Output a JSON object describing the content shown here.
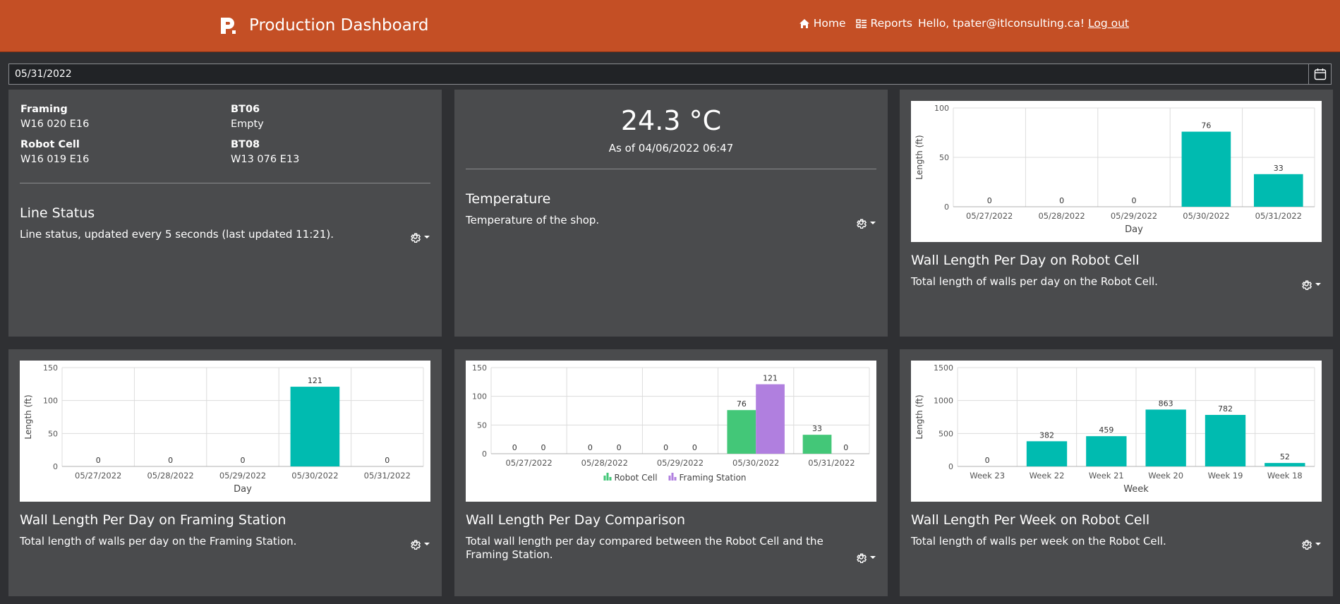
{
  "app": {
    "title": "Production Dashboard",
    "nav": {
      "home": "Home",
      "reports": "Reports",
      "greeting": "Hello, tpater@itlconsulting.ca!",
      "logout": "Log out"
    }
  },
  "date_picker": {
    "value": "05/31/2022"
  },
  "line_status": {
    "items": [
      {
        "label": "Framing",
        "value": "W16 020 E16"
      },
      {
        "label": "Robot Cell",
        "value": "W16 019 E16"
      },
      {
        "label": "BT06",
        "value": "Empty"
      },
      {
        "label": "BT08",
        "value": "W13 076 E13"
      }
    ],
    "title": "Line Status",
    "description": "Line status, updated every 5 seconds (last updated 11:21)."
  },
  "temperature": {
    "value": "24.3 °C",
    "as_of": "As of 04/06/2022 06:47",
    "title": "Temperature",
    "description": "Temperature of the shop."
  },
  "robot_day_card": {
    "title": "Wall Length Per Day on Robot Cell",
    "description": "Total length of walls per day on the Robot Cell."
  },
  "framing_day_card": {
    "title": "Wall Length Per Day on Framing Station",
    "description": "Total length of walls per day on the Framing Station."
  },
  "comparison_card": {
    "title": "Wall Length Per Day Comparison",
    "description": "Total wall length per day compared between the Robot Cell and the Framing Station."
  },
  "robot_week_card": {
    "title": "Wall Length Per Week on Robot Cell",
    "description": "Total length of walls per week on the Robot Cell."
  },
  "colors": {
    "header": "#c44f25",
    "teal": "#00bbb0",
    "robot_green": "#43c778",
    "framing_purple": "#b07fdf"
  },
  "chart_data": [
    {
      "id": "robot-day",
      "type": "bar",
      "categories": [
        "05/27/2022",
        "05/28/2022",
        "05/29/2022",
        "05/30/2022",
        "05/31/2022"
      ],
      "values": [
        0,
        0,
        0,
        76,
        33
      ],
      "xlabel": "Day",
      "ylabel": "Length (ft)",
      "ylim": [
        0,
        100
      ],
      "yticks": [
        0,
        50,
        100
      ],
      "grid": true
    },
    {
      "id": "framing-day",
      "type": "bar",
      "categories": [
        "05/27/2022",
        "05/28/2022",
        "05/29/2022",
        "05/30/2022",
        "05/31/2022"
      ],
      "values": [
        0,
        0,
        0,
        121,
        0
      ],
      "xlabel": "Day",
      "ylabel": "Length (ft)",
      "ylim": [
        0,
        150
      ],
      "yticks": [
        0,
        50,
        100,
        150
      ],
      "grid": true
    },
    {
      "id": "comparison",
      "type": "bar",
      "categories": [
        "05/27/2022",
        "05/28/2022",
        "05/29/2022",
        "05/30/2022",
        "05/31/2022"
      ],
      "series": [
        {
          "name": "Robot Cell",
          "values": [
            0,
            0,
            0,
            76,
            33
          ]
        },
        {
          "name": "Framing Station",
          "values": [
            0,
            0,
            0,
            121,
            0
          ]
        }
      ],
      "xlabel": "",
      "ylabel": "",
      "ylim": [
        0,
        150
      ],
      "yticks": [
        0,
        50,
        100,
        150
      ],
      "legend": "bottom",
      "grid": true
    },
    {
      "id": "robot-week",
      "type": "bar",
      "categories": [
        "Week 23",
        "Week 22",
        "Week 21",
        "Week 20",
        "Week 19",
        "Week 18"
      ],
      "values": [
        0,
        382,
        459,
        863,
        782,
        52
      ],
      "xlabel": "Week",
      "ylabel": "Length (ft)",
      "ylim": [
        0,
        1500
      ],
      "yticks": [
        0,
        500,
        1000,
        1500
      ],
      "grid": true
    }
  ]
}
